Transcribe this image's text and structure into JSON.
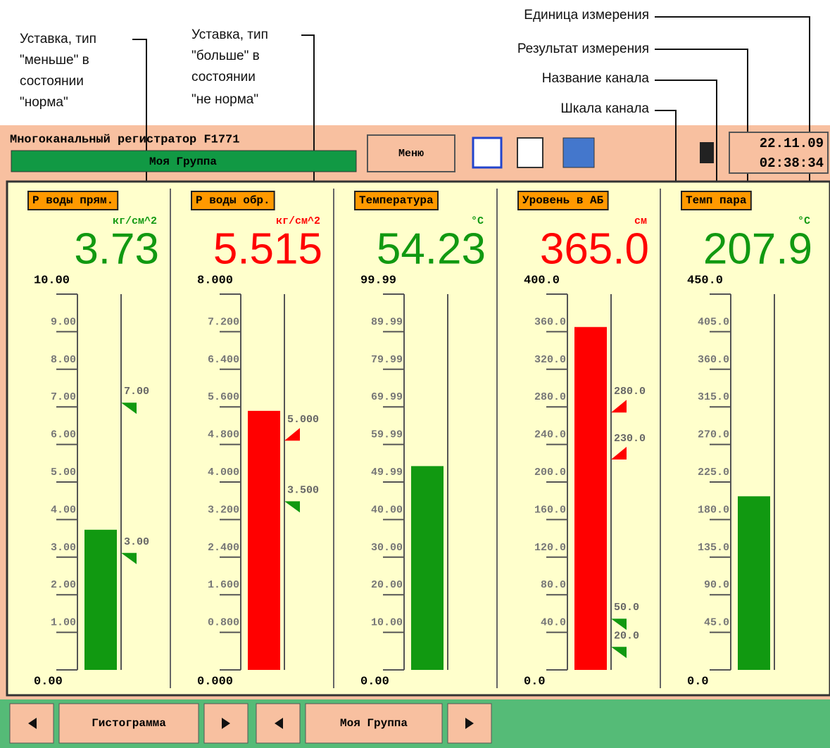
{
  "annotations": {
    "setpoint_less": [
      "Уставка, тип",
      "\"меньше\" в",
      "состоянии",
      "\"норма\""
    ],
    "setpoint_greater": [
      "Уставка, тип",
      "\"больше\" в",
      "состоянии",
      "\"не норма\""
    ],
    "unit": "Единица измерения",
    "result": "Результат измерения",
    "channel_name": "Название канала",
    "channel_scale": "Шкала канала"
  },
  "header": {
    "title": "Многоканальный регистратор F1771",
    "group": "Моя Группа",
    "menu": "Меню",
    "date": "22.11.09",
    "time": "02:38:34"
  },
  "channels": [
    {
      "name": "Р воды прям.",
      "unit": "кг/см^2",
      "value": "3.73",
      "color": "#119911",
      "scale": [
        "0.00",
        "1.00",
        "2.00",
        "3.00",
        "4.00",
        "5.00",
        "6.00",
        "7.00",
        "8.00",
        "9.00",
        "10.00"
      ],
      "setpoints": [
        {
          "value": "7.00",
          "color": "#119911"
        },
        {
          "value": "3.00",
          "color": "#119911"
        }
      ]
    },
    {
      "name": "Р воды обр.",
      "unit": "кг/см^2",
      "value": "5.515",
      "color": "#ff0000",
      "scale": [
        "0.000",
        "0.800",
        "1.600",
        "2.400",
        "3.200",
        "4.000",
        "4.800",
        "5.600",
        "6.400",
        "7.200",
        "8.000"
      ],
      "setpoints": [
        {
          "value": "5.000",
          "color": "#ff0000"
        },
        {
          "value": "3.500",
          "color": "#119911"
        }
      ]
    },
    {
      "name": "Температура",
      "unit": "°С",
      "value": "54.23",
      "color": "#119911",
      "scale": [
        "0.00",
        "10.00",
        "20.00",
        "30.00",
        "40.00",
        "49.99",
        "59.99",
        "69.99",
        "79.99",
        "89.99",
        "99.99"
      ],
      "setpoints": []
    },
    {
      "name": "Уровень в АБ",
      "unit": "см",
      "value": "365.0",
      "color": "#ff0000",
      "scale": [
        "0.0",
        "40.0",
        "80.0",
        "120.0",
        "160.0",
        "200.0",
        "240.0",
        "280.0",
        "320.0",
        "360.0",
        "400.0"
      ],
      "setpoints": [
        {
          "value": "280.0",
          "color": "#ff0000"
        },
        {
          "value": "230.0",
          "color": "#ff0000"
        },
        {
          "value": "50.0",
          "color": "#119911"
        },
        {
          "value": "20.0",
          "color": "#119911"
        }
      ]
    },
    {
      "name": "Темп пара",
      "unit": "°С",
      "value": "207.9",
      "color": "#119911",
      "scale": [
        "0.0",
        "45.0",
        "90.0",
        "135.0",
        "180.0",
        "225.0",
        "270.0",
        "315.0",
        "360.0",
        "405.0",
        "450.0"
      ],
      "setpoints": []
    }
  ],
  "tabs": {
    "view": "Гистограмма",
    "group": "Моя Группа"
  }
}
